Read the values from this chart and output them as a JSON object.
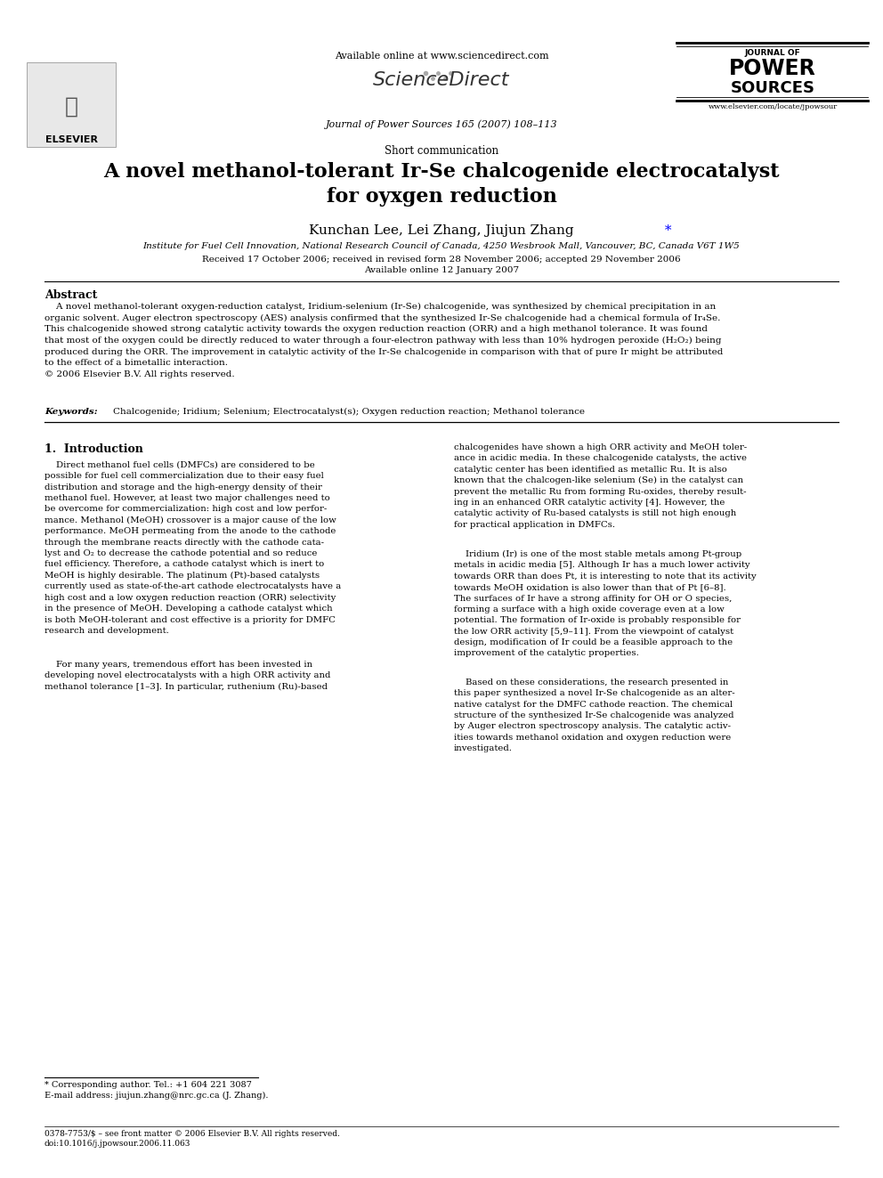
{
  "bg_color": "#ffffff",
  "title_main": "A novel methanol-tolerant Ir-Se chalcogenide electrocatalyst\nfor oyxgen reduction",
  "short_comm": "Short communication",
  "authors": "Kunchan Lee, Lei Zhang, Jiujun Zhang",
  "authors_star": "*",
  "affiliation": "Institute for Fuel Cell Innovation, National Research Council of Canada, 4250 Wesbrook Mall, Vancouver, BC, Canada V6T 1W5",
  "received": "Received 17 October 2006; received in revised form 28 November 2006; accepted 29 November 2006",
  "available": "Available online 12 January 2007",
  "journal_ref": "Journal of Power Sources 165 (2007) 108–113",
  "website_top": "Available online at www.sciencedirect.com",
  "website_bottom": "www.elsevier.com/locate/jpowsour",
  "abstract_title": "Abstract",
  "abstract_text": "    A novel methanol-tolerant oxygen-reduction catalyst, Iridium-selenium (Ir-Se) chalcogenide, was synthesized by chemical precipitation in an\norganic solvent. Auger electron spectroscopy (AES) analysis confirmed that the synthesized Ir-Se chalcogenide had a chemical formula of Ir₄Se.\nThis chalcogenide showed strong catalytic activity towards the oxygen reduction reaction (ORR) and a high methanol tolerance. It was found\nthat most of the oxygen could be directly reduced to water through a four-electron pathway with less than 10% hydrogen peroxide (H₂O₂) being\nproduced during the ORR. The improvement in catalytic activity of the Ir-Se chalcogenide in comparison with that of pure Ir might be attributed\nto the effect of a bimetallic interaction.\n© 2006 Elsevier B.V. All rights reserved.",
  "keywords_label": "Keywords:",
  "keywords_text": "Chalcogenide; Iridium; Selenium; Electrocatalyst(s); Oxygen reduction reaction; Methanol tolerance",
  "intro_title": "1.  Introduction",
  "intro_col1_p1": "    Direct methanol fuel cells (DMFCs) are considered to be\npossible for fuel cell commercialization due to their easy fuel\ndistribution and storage and the high-energy density of their\nmethanol fuel. However, at least two major challenges need to\nbe overcome for commercialization: high cost and low perfor-\nmance. Methanol (MeOH) crossover is a major cause of the low\nperformance. MeOH permeating from the anode to the cathode\nthrough the membrane reacts directly with the cathode cata-\nlyst and O₂ to decrease the cathode potential and so reduce\nfuel efficiency. Therefore, a cathode catalyst which is inert to\nMeOH is highly desirable. The platinum (Pt)-based catalysts\ncurrently used as state-of-the-art cathode electrocatalysts have a\nhigh cost and a low oxygen reduction reaction (ORR) selectivity\nin the presence of MeOH. Developing a cathode catalyst which\nis both MeOH-tolerant and cost effective is a priority for DMFC\nresearch and development.",
  "intro_col1_p2": "    For many years, tremendous effort has been invested in\ndeveloping novel electrocatalysts with a high ORR activity and\nmethanol tolerance [1–3]. In particular, ruthenium (Ru)-based",
  "intro_col2_p1": "chalcogenides have shown a high ORR activity and MeOH toler-\nance in acidic media. In these chalcogenide catalysts, the active\ncatalytic center has been identified as metallic Ru. It is also\nknown that the chalcogen-like selenium (Se) in the catalyst can\nprevent the metallic Ru from forming Ru-oxides, thereby result-\ning in an enhanced ORR catalytic activity [4]. However, the\ncatalytic activity of Ru-based catalysts is still not high enough\nfor practical application in DMFCs.",
  "intro_col2_p2": "    Iridium (Ir) is one of the most stable metals among Pt-group\nmetals in acidic media [5]. Although Ir has a much lower activity\ntowards ORR than does Pt, it is interesting to note that its activity\ntowards MeOH oxidation is also lower than that of Pt [6–8].\nThe surfaces of Ir have a strong affinity for OH or O species,\nforming a surface with a high oxide coverage even at a low\npotential. The formation of Ir-oxide is probably responsible for\nthe low ORR activity [5,9–11]. From the viewpoint of catalyst\ndesign, modification of Ir could be a feasible approach to the\nimprovement of the catalytic properties.",
  "intro_col2_p3": "    Based on these considerations, the research presented in\nthis paper synthesized a novel Ir-Se chalcogenide as an alter-\nnative catalyst for the DMFC cathode reaction. The chemical\nstructure of the synthesized Ir-Se chalcogenide was analyzed\nby Auger electron spectroscopy analysis. The catalytic activ-\nities towards methanol oxidation and oxygen reduction were\ninvestigated.",
  "footnote_line": "* Corresponding author. Tel.: +1 604 221 3087",
  "footnote_email": "E-mail address: jiujun.zhang@nrc.gc.ca (J. Zhang).",
  "footer_issn": "0378-7753/$ – see front matter © 2006 Elsevier B.V. All rights reserved.",
  "footer_doi": "doi:10.1016/j.jpowsour.2006.11.063"
}
